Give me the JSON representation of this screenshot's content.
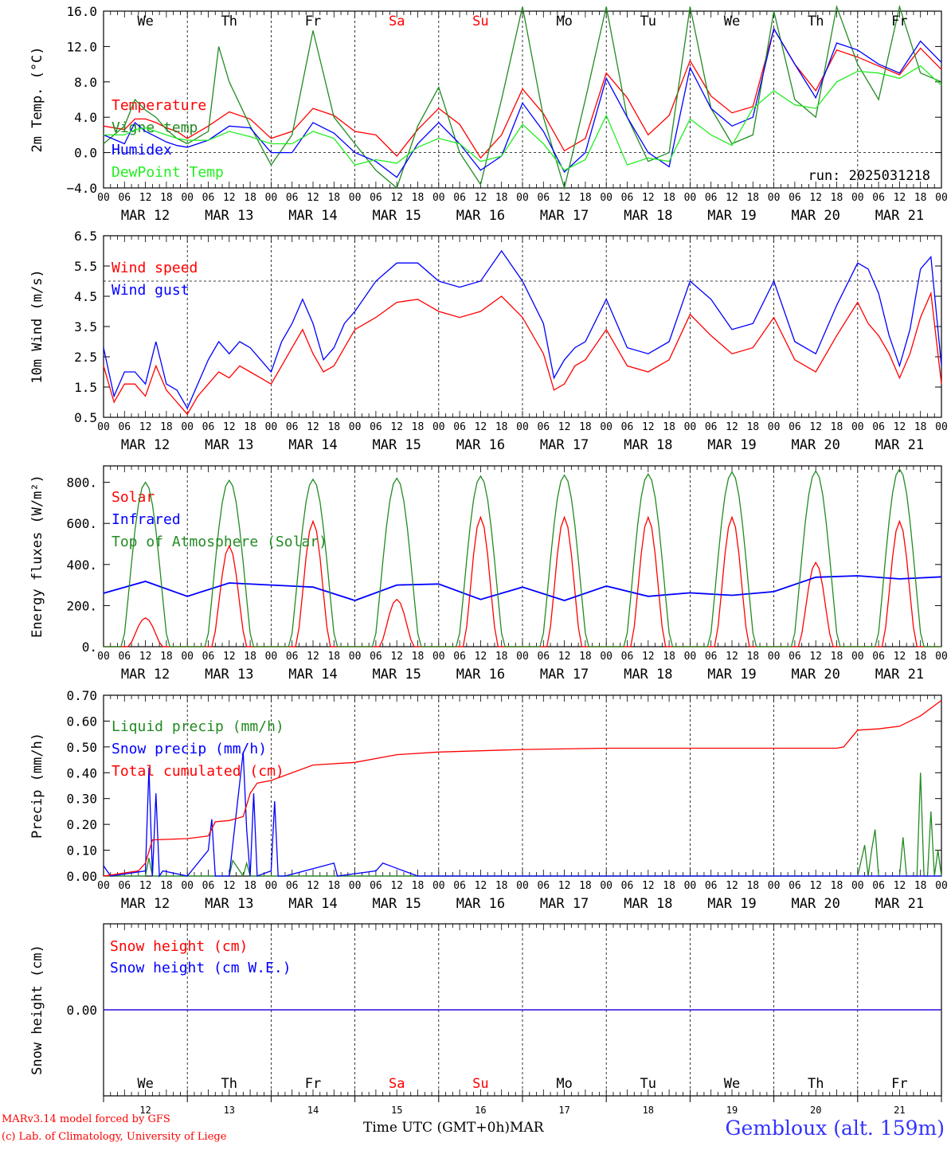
{
  "run_label": "run: 2025031218",
  "weekday_labels": [
    {
      "label": "We",
      "color": "#000000"
    },
    {
      "label": "Th",
      "color": "#000000"
    },
    {
      "label": "Fr",
      "color": "#000000"
    },
    {
      "label": "Sa",
      "color": "#ff0000"
    },
    {
      "label": "Su",
      "color": "#ff0000"
    },
    {
      "label": "Mo",
      "color": "#000000"
    },
    {
      "label": "Tu",
      "color": "#000000"
    },
    {
      "label": "We",
      "color": "#000000"
    },
    {
      "label": "Th",
      "color": "#000000"
    },
    {
      "label": "Fr",
      "color": "#000000"
    }
  ],
  "date_labels": [
    "MAR 12",
    "MAR 13",
    "MAR 14",
    "MAR 15",
    "MAR 16",
    "MAR 17",
    "MAR 18",
    "MAR 19",
    "MAR 20",
    "MAR 21"
  ],
  "hour_labels": [
    "00",
    "06",
    "12",
    "18"
  ],
  "day_numbers": [
    "12",
    "13",
    "14",
    "15",
    "16",
    "17",
    "18",
    "19",
    "20",
    "21"
  ],
  "footer": {
    "model": "MARv3.14 model forced by GFS",
    "credit": "(c) Lab. of Climatology, University of Liege",
    "time_axis": "Time UTC (GMT+0h)MAR",
    "station": "Gembloux (alt. 159m)"
  },
  "chart_data": [
    {
      "id": "temperature",
      "type": "line",
      "ylabel": "2m Temp. (°C)",
      "ylim": [
        -4.0,
        16.0
      ],
      "yticks": [
        "16.0",
        "12.0",
        "8.0",
        "4.0",
        "0.0",
        "−4.0"
      ],
      "reference_line": 0.0,
      "x_unit": "hours since MAR 12 00 UTC",
      "x_range": [
        0,
        240
      ],
      "series": [
        {
          "name": "Temperature",
          "color": "#ff0000",
          "x": [
            0,
            6,
            9,
            12,
            15,
            18,
            21,
            24,
            30,
            36,
            42,
            48,
            54,
            60,
            66,
            72,
            78,
            84,
            90,
            96,
            102,
            108,
            114,
            120,
            126,
            132,
            138,
            144,
            150,
            156,
            162,
            168,
            174,
            180,
            186,
            192,
            198,
            204,
            210,
            216,
            222,
            228,
            234,
            240
          ],
          "y": [
            3.0,
            2.6,
            3.8,
            3.8,
            3.4,
            2.8,
            2.4,
            1.6,
            3.0,
            4.6,
            3.8,
            1.6,
            2.4,
            5.0,
            4.2,
            2.4,
            2.0,
            -0.4,
            2.6,
            5.0,
            3.2,
            -0.6,
            2.0,
            7.2,
            4.4,
            0.2,
            1.6,
            9.0,
            6.2,
            2.0,
            4.2,
            10.4,
            6.4,
            4.5,
            5.2,
            14.0,
            10.0,
            7.0,
            11.6,
            10.8,
            9.8,
            8.8,
            11.8,
            9.4
          ]
        },
        {
          "name": "Vigne temp",
          "color": "#228b22",
          "x": [
            0,
            6,
            9,
            12,
            15,
            18,
            21,
            24,
            30,
            33,
            36,
            42,
            48,
            54,
            60,
            66,
            72,
            78,
            84,
            90,
            96,
            102,
            108,
            114,
            120,
            126,
            132,
            138,
            144,
            150,
            156,
            162,
            168,
            174,
            180,
            186,
            192,
            198,
            204,
            210,
            216,
            222,
            228,
            234,
            240
          ],
          "y": [
            1.0,
            3.0,
            6.0,
            4.8,
            4.0,
            2.6,
            1.6,
            1.0,
            2.4,
            12.0,
            8.0,
            3.0,
            -1.4,
            2.0,
            13.8,
            4.0,
            1.0,
            -2.0,
            -4.0,
            3.0,
            7.4,
            0.0,
            -3.6,
            6.0,
            16.5,
            4.0,
            -4.0,
            6.0,
            16.5,
            4.0,
            -1.0,
            0.0,
            16.5,
            5.0,
            1.0,
            2.0,
            16.0,
            6.0,
            4.0,
            16.5,
            10.0,
            6.0,
            16.5,
            9.0,
            8.0
          ]
        },
        {
          "name": "Humidex",
          "color": "#0000ff",
          "x": [
            0,
            6,
            9,
            12,
            15,
            18,
            21,
            24,
            30,
            36,
            42,
            48,
            54,
            60,
            66,
            72,
            78,
            84,
            90,
            96,
            102,
            108,
            114,
            120,
            126,
            132,
            138,
            144,
            150,
            156,
            162,
            168,
            174,
            180,
            186,
            192,
            198,
            204,
            210,
            216,
            222,
            228,
            234,
            240
          ],
          "y": [
            2.0,
            1.0,
            3.4,
            2.4,
            1.8,
            1.2,
            0.8,
            0.6,
            1.4,
            3.0,
            2.8,
            0.0,
            0.0,
            3.4,
            2.2,
            0.0,
            -1.0,
            -2.8,
            1.0,
            3.4,
            1.0,
            -2.0,
            -0.4,
            5.6,
            2.4,
            -2.2,
            0.0,
            8.4,
            4.0,
            0.0,
            -1.6,
            9.6,
            5.0,
            3.0,
            4.0,
            14.0,
            10.0,
            6.2,
            12.4,
            11.6,
            10.0,
            9.0,
            12.6,
            10.2
          ]
        },
        {
          "name": "DewPoint Temp",
          "color": "#22ee22",
          "x": [
            0,
            6,
            9,
            12,
            15,
            18,
            21,
            24,
            30,
            36,
            42,
            48,
            54,
            60,
            66,
            72,
            78,
            84,
            90,
            96,
            102,
            108,
            114,
            120,
            126,
            132,
            138,
            144,
            150,
            156,
            162,
            168,
            174,
            180,
            186,
            192,
            198,
            204,
            210,
            216,
            222,
            228,
            234,
            240
          ],
          "y": [
            2.0,
            2.0,
            2.6,
            2.8,
            2.4,
            2.0,
            1.6,
            1.4,
            1.4,
            2.4,
            1.8,
            1.0,
            1.0,
            2.4,
            1.6,
            -1.4,
            -0.8,
            -1.2,
            0.6,
            1.6,
            1.0,
            -1.0,
            -0.4,
            3.2,
            1.0,
            -2.0,
            -0.8,
            4.2,
            -1.4,
            -0.6,
            -1.0,
            3.8,
            2.0,
            0.8,
            5.0,
            7.0,
            5.4,
            5.0,
            8.0,
            9.2,
            9.0,
            8.4,
            9.8,
            7.6
          ]
        }
      ]
    },
    {
      "id": "wind",
      "type": "line",
      "ylabel": "10m Wind (m/s)",
      "ylim": [
        0.5,
        6.5
      ],
      "yticks": [
        "6.5",
        "5.5",
        "4.5",
        "3.5",
        "2.5",
        "1.5",
        "0.5"
      ],
      "reference_line": 5.0,
      "x_unit": "hours since MAR 12 00 UTC",
      "x_range": [
        0,
        240
      ],
      "series": [
        {
          "name": "Wind speed",
          "color": "#ff0000",
          "x": [
            0,
            3,
            6,
            9,
            12,
            15,
            18,
            21,
            24,
            27,
            30,
            33,
            36,
            39,
            42,
            45,
            48,
            51,
            54,
            57,
            60,
            63,
            66,
            69,
            72,
            78,
            84,
            90,
            96,
            102,
            108,
            114,
            120,
            126,
            129,
            132,
            135,
            138,
            144,
            150,
            156,
            162,
            168,
            174,
            180,
            186,
            192,
            198,
            204,
            210,
            216,
            219,
            222,
            225,
            228,
            231,
            234,
            237,
            240
          ],
          "y": [
            2.2,
            1.0,
            1.6,
            1.6,
            1.2,
            2.2,
            1.4,
            1.0,
            0.6,
            1.2,
            1.6,
            2.0,
            1.8,
            2.2,
            2.0,
            1.8,
            1.6,
            2.2,
            2.8,
            3.4,
            2.6,
            2.0,
            2.2,
            2.8,
            3.4,
            3.8,
            4.3,
            4.4,
            4.0,
            3.8,
            4.0,
            4.5,
            3.8,
            2.6,
            1.4,
            1.6,
            2.2,
            2.4,
            3.4,
            2.2,
            2.0,
            2.4,
            3.9,
            3.2,
            2.6,
            2.8,
            3.8,
            2.4,
            2.0,
            3.2,
            4.3,
            3.6,
            3.2,
            2.6,
            1.8,
            2.6,
            3.8,
            4.6,
            1.6
          ]
        },
        {
          "name": "Wind gust",
          "color": "#0000ff",
          "x": [
            0,
            3,
            6,
            9,
            12,
            15,
            18,
            21,
            24,
            27,
            30,
            33,
            36,
            39,
            42,
            45,
            48,
            51,
            54,
            57,
            60,
            63,
            66,
            69,
            72,
            78,
            84,
            90,
            96,
            102,
            108,
            114,
            120,
            126,
            129,
            132,
            135,
            138,
            144,
            150,
            156,
            162,
            168,
            174,
            180,
            186,
            192,
            198,
            204,
            210,
            216,
            219,
            222,
            225,
            228,
            231,
            234,
            237,
            240
          ],
          "y": [
            2.8,
            1.2,
            2.0,
            2.0,
            1.6,
            3.0,
            1.6,
            1.4,
            0.8,
            1.6,
            2.4,
            3.0,
            2.6,
            3.0,
            2.8,
            2.4,
            2.0,
            3.0,
            3.6,
            4.4,
            3.6,
            2.4,
            2.8,
            3.6,
            4.0,
            5.0,
            5.6,
            5.6,
            5.0,
            4.8,
            5.0,
            6.0,
            5.0,
            3.6,
            1.8,
            2.4,
            2.8,
            3.0,
            4.4,
            2.8,
            2.6,
            3.0,
            5.0,
            4.4,
            3.4,
            3.6,
            5.0,
            3.0,
            2.6,
            4.2,
            5.6,
            5.4,
            4.6,
            3.2,
            2.2,
            3.4,
            5.4,
            5.8,
            2.2
          ]
        }
      ]
    },
    {
      "id": "energy",
      "type": "line",
      "ylabel": "Energy fluxes (W/m²)",
      "ylim": [
        0,
        880
      ],
      "yticks": [
        "800.",
        "600.",
        "400.",
        "200.",
        "0."
      ],
      "x_unit": "hours since MAR 12 00 UTC",
      "x_range": [
        0,
        240
      ],
      "series": [
        {
          "name": "Solar",
          "color": "#ff0000",
          "peaks": [
            140,
            490,
            610,
            230,
            630,
            630,
            630,
            630,
            410,
            610
          ]
        },
        {
          "name": "Infrared",
          "color": "#0000ff",
          "x": [
            0,
            12,
            24,
            36,
            48,
            60,
            72,
            84,
            96,
            108,
            120,
            132,
            144,
            156,
            168,
            180,
            192,
            204,
            216,
            228,
            240
          ],
          "y": [
            260,
            318,
            245,
            310,
            300,
            290,
            225,
            300,
            305,
            230,
            290,
            225,
            295,
            245,
            262,
            250,
            268,
            338,
            345,
            330,
            340
          ]
        },
        {
          "name": "Top of Atmosphere (Solar)",
          "color": "#228b22",
          "peaks": [
            800,
            810,
            815,
            820,
            830,
            835,
            840,
            850,
            855,
            865
          ]
        }
      ]
    },
    {
      "id": "precip",
      "type": "line",
      "ylabel": "Precip (mm/h)",
      "ylim": [
        0.0,
        0.7
      ],
      "yticks": [
        "0.70",
        "0.60",
        "0.50",
        "0.40",
        "0.30",
        "0.20",
        "0.10",
        "0.00"
      ],
      "x_unit": "hours since MAR 12 00 UTC",
      "x_range": [
        0,
        240
      ],
      "series": [
        {
          "name": "Liquid precip (mm/h)",
          "color": "#228b22",
          "x": [
            0,
            12,
            13,
            14,
            36,
            37,
            40,
            41,
            42,
            102,
            216,
            218,
            219,
            220,
            221,
            222,
            228,
            229,
            230,
            233,
            234,
            235,
            236,
            237,
            238,
            239,
            240
          ],
          "y": [
            0,
            0,
            0.07,
            0,
            0,
            0.06,
            0,
            0.05,
            0,
            0,
            0,
            0.12,
            0,
            0.1,
            0.18,
            0,
            0,
            0.15,
            0,
            0,
            0.4,
            0,
            0,
            0.25,
            0,
            0.1,
            0
          ]
        },
        {
          "name": "Snow precip (mm/h)",
          "color": "#0000ff",
          "x": [
            0,
            2,
            12,
            13,
            14,
            15,
            16,
            17,
            24,
            30,
            31,
            32,
            36,
            40,
            41,
            42,
            43,
            44,
            48,
            49,
            50,
            52,
            66,
            67,
            78,
            80,
            84,
            90,
            102,
            240
          ],
          "y": [
            0.04,
            0,
            0.02,
            0.42,
            0,
            0.32,
            0,
            0.02,
            0,
            0.1,
            0.22,
            0,
            0,
            0.48,
            0.18,
            0,
            0.32,
            0,
            0.02,
            0.29,
            0,
            0,
            0.05,
            0,
            0.02,
            0.05,
            0.03,
            0,
            0,
            0
          ]
        },
        {
          "name": "Total cumulated (cm)",
          "color": "#ff0000",
          "x": [
            0,
            10,
            12,
            14,
            24,
            30,
            32,
            36,
            40,
            42,
            44,
            48,
            60,
            72,
            84,
            96,
            120,
            144,
            168,
            192,
            210,
            212,
            216,
            222,
            228,
            234,
            240
          ],
          "y": [
            0.0,
            0.02,
            0.05,
            0.14,
            0.145,
            0.155,
            0.21,
            0.215,
            0.23,
            0.32,
            0.36,
            0.37,
            0.43,
            0.44,
            0.47,
            0.48,
            0.49,
            0.495,
            0.495,
            0.495,
            0.495,
            0.5,
            0.565,
            0.57,
            0.58,
            0.62,
            0.68
          ]
        }
      ]
    },
    {
      "id": "snow",
      "type": "line",
      "ylabel": "Snow height (cm)",
      "ylim": [
        -1.0,
        1.0
      ],
      "yticks": [
        "0.00"
      ],
      "x_unit": "hours since MAR 12 00 UTC",
      "x_range": [
        0,
        240
      ],
      "series": [
        {
          "name": "Snow height (cm)",
          "color": "#ff0000",
          "x": [
            0,
            240
          ],
          "y": [
            0,
            0
          ]
        },
        {
          "name": "Snow height (cm W.E.)",
          "color": "#0000ff",
          "x": [
            0,
            240
          ],
          "y": [
            0,
            0
          ]
        }
      ]
    }
  ]
}
